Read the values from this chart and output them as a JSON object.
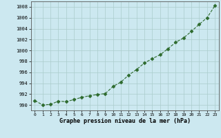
{
  "x": [
    0,
    1,
    2,
    3,
    4,
    5,
    6,
    7,
    8,
    9,
    10,
    11,
    12,
    13,
    14,
    15,
    16,
    17,
    18,
    19,
    20,
    21,
    22,
    23
  ],
  "y": [
    990.8,
    990.0,
    990.1,
    990.7,
    990.6,
    991.0,
    991.4,
    991.7,
    991.9,
    992.1,
    993.4,
    994.2,
    995.5,
    996.5,
    997.7,
    998.5,
    999.2,
    1000.3,
    1001.5,
    1002.3,
    1003.5,
    1004.8,
    1006.0,
    1008.2
  ],
  "line_color": "#2d6a2d",
  "marker": "D",
  "marker_size": 2.5,
  "bg_color": "#cce8f0",
  "grid_color": "#aacccc",
  "xlabel": "Graphe pression niveau de la mer (hPa)",
  "xlabel_color": "#000000",
  "ylabel_color": "#000000",
  "xlim": [
    -0.5,
    23.5
  ],
  "ylim": [
    989.0,
    1009.0
  ],
  "yticks": [
    990,
    992,
    994,
    996,
    998,
    1000,
    1002,
    1004,
    1006,
    1008
  ],
  "xticks": [
    0,
    1,
    2,
    3,
    4,
    5,
    6,
    7,
    8,
    9,
    10,
    11,
    12,
    13,
    14,
    15,
    16,
    17,
    18,
    19,
    20,
    21,
    22,
    23
  ]
}
